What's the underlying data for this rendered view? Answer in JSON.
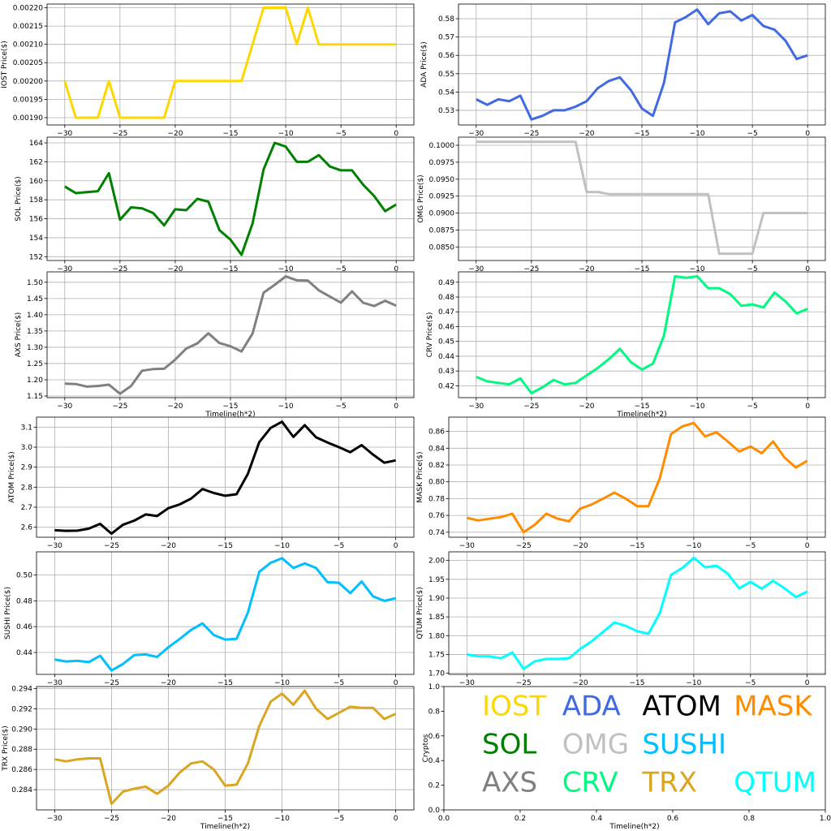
{
  "chart_data": [
    {
      "type": "line",
      "x": [
        -30,
        -29,
        -28,
        -27,
        -26,
        -25,
        -24,
        -23,
        -22,
        -21,
        -20,
        -19,
        -18,
        -17,
        -16,
        -15,
        -14,
        -13,
        -12,
        -11,
        -10,
        -9,
        -8,
        -7,
        -6,
        -5,
        -4,
        -3,
        -2,
        -1,
        0
      ],
      "series": [
        {
          "name": "IOST",
          "values": [
            0.002,
            0.0019,
            0.0019,
            0.0019,
            0.002,
            0.0019,
            0.0019,
            0.0019,
            0.0019,
            0.0019,
            0.002,
            0.002,
            0.002,
            0.002,
            0.002,
            0.002,
            0.002,
            0.0021,
            0.0022,
            0.0022,
            0.0022,
            0.0021,
            0.0022,
            0.0021,
            0.0021,
            0.0021,
            0.0021,
            0.0021,
            0.0021,
            0.0021,
            0.0021
          ]
        }
      ],
      "ylabel": "IOST Price($)",
      "xlabel": "",
      "ylim": [
        0.00188,
        0.00221
      ],
      "yticks": [
        "0.00190",
        "0.00195",
        "0.00200",
        "0.00205",
        "0.00210",
        "0.00215",
        "0.00220"
      ],
      "xticks": [
        "−30",
        "−25",
        "−20",
        "−15",
        "−10",
        "−5",
        "0"
      ],
      "color": "#FFD700",
      "grid": true
    },
    {
      "type": "line",
      "x": [
        -30,
        -29,
        -28,
        -27,
        -26,
        -25,
        -24,
        -23,
        -22,
        -21,
        -20,
        -19,
        -18,
        -17,
        -16,
        -15,
        -14,
        -13,
        -12,
        -11,
        -10,
        -9,
        -8,
        -7,
        -6,
        -5,
        -4,
        -3,
        -2,
        -1,
        0
      ],
      "series": [
        {
          "name": "ADA",
          "values": [
            0.536,
            0.533,
            0.536,
            0.535,
            0.538,
            0.525,
            0.527,
            0.53,
            0.53,
            0.532,
            0.535,
            0.542,
            0.546,
            0.548,
            0.541,
            0.531,
            0.527,
            0.545,
            0.578,
            0.581,
            0.585,
            0.577,
            0.583,
            0.584,
            0.579,
            0.582,
            0.576,
            0.574,
            0.568,
            0.558,
            0.56
          ]
        }
      ],
      "ylabel": "ADA  Price($)",
      "xlabel": "",
      "ylim": [
        0.522,
        0.588
      ],
      "yticks": [
        "0.53",
        "0.54",
        "0.55",
        "0.56",
        "0.57",
        "0.58"
      ],
      "xticks": [
        "−30",
        "−25",
        "−20",
        "−15",
        "−10",
        "−5",
        "0"
      ],
      "color": "#4169E1",
      "grid": true
    },
    {
      "type": "line",
      "x": [
        -30,
        -29,
        -28,
        -27,
        -26,
        -25,
        -24,
        -23,
        -22,
        -21,
        -20,
        -19,
        -18,
        -17,
        -16,
        -15,
        -14,
        -13,
        -12,
        -11,
        -10,
        -9,
        -8,
        -7,
        -6,
        -5,
        -4,
        -3,
        -2,
        -1,
        0
      ],
      "series": [
        {
          "name": "SOL",
          "values": [
            159.4,
            158.7,
            158.8,
            158.9,
            160.8,
            155.9,
            157.2,
            157.1,
            156.6,
            155.3,
            157.0,
            156.9,
            158.1,
            157.8,
            154.8,
            153.8,
            152.2,
            155.5,
            161.2,
            164.0,
            163.6,
            162.0,
            162.0,
            162.7,
            161.5,
            161.1,
            161.1,
            159.6,
            158.4,
            156.8,
            157.5
          ]
        }
      ],
      "ylabel": "SOL Price($)",
      "xlabel": "",
      "ylim": [
        151.6,
        164.6
      ],
      "yticks": [
        "152",
        "154",
        "156",
        "158",
        "160",
        "162",
        "164"
      ],
      "xticks": [
        "−30",
        "−25",
        "−20",
        "−15",
        "−10",
        "−5",
        "0"
      ],
      "color": "#008000",
      "grid": true
    },
    {
      "type": "line",
      "x": [
        -30,
        -29,
        -28,
        -27,
        -26,
        -25,
        -24,
        -23,
        -22,
        -21,
        -20,
        -19,
        -18,
        -17,
        -16,
        -15,
        -14,
        -13,
        -12,
        -11,
        -10,
        -9,
        -8,
        -7,
        -6,
        -5,
        -4,
        -3,
        -2,
        -1,
        0
      ],
      "series": [
        {
          "name": "OMG",
          "values": [
            0.1005,
            0.1005,
            0.1005,
            0.1005,
            0.1005,
            0.1005,
            0.1005,
            0.1005,
            0.1005,
            0.1005,
            0.0931,
            0.0931,
            0.0928,
            0.0928,
            0.0928,
            0.0928,
            0.0928,
            0.0928,
            0.0928,
            0.0928,
            0.0928,
            0.0928,
            0.084,
            0.084,
            0.084,
            0.084,
            0.09,
            0.09,
            0.09,
            0.09,
            0.09
          ]
        }
      ],
      "ylabel": "OMG  Price($)",
      "xlabel": "",
      "ylim": [
        0.083,
        0.1012
      ],
      "yticks": [
        "0.0850",
        "0.0875",
        "0.0900",
        "0.0925",
        "0.0950",
        "0.0975",
        "0.1000"
      ],
      "xticks": [
        "−30",
        "−25",
        "−20",
        "−15",
        "−10",
        "−5",
        "0"
      ],
      "color": "#C0C0C0",
      "grid": true
    },
    {
      "type": "line",
      "x": [
        -30,
        -29,
        -28,
        -27,
        -26,
        -25,
        -24,
        -23,
        -22,
        -21,
        -20,
        -19,
        -18,
        -17,
        -16,
        -15,
        -14,
        -13,
        -12,
        -11,
        -10,
        -9,
        -8,
        -7,
        -6,
        -5,
        -4,
        -3,
        -2,
        -1,
        0
      ],
      "series": [
        {
          "name": "AXS",
          "values": [
            1.188,
            1.187,
            1.179,
            1.181,
            1.185,
            1.157,
            1.181,
            1.228,
            1.233,
            1.234,
            1.262,
            1.296,
            1.312,
            1.343,
            1.313,
            1.303,
            1.287,
            1.342,
            1.468,
            1.492,
            1.518,
            1.506,
            1.505,
            1.475,
            1.456,
            1.437,
            1.472,
            1.437,
            1.427,
            1.443,
            1.428
          ]
        }
      ],
      "ylabel": "AXS Price($)",
      "xlabel": "Timeline(h*2)",
      "ylim": [
        1.145,
        1.532
      ],
      "yticks": [
        "1.15",
        "1.20",
        "1.25",
        "1.30",
        "1.35",
        "1.40",
        "1.45",
        "1.50"
      ],
      "xticks": [
        "−30",
        "−25",
        "−20",
        "−15",
        "−10",
        "−5",
        "0"
      ],
      "color": "#808080",
      "grid": true
    },
    {
      "type": "line",
      "x": [
        -30,
        -29,
        -28,
        -27,
        -26,
        -25,
        -24,
        -23,
        -22,
        -21,
        -20,
        -19,
        -18,
        -17,
        -16,
        -15,
        -14,
        -13,
        -12,
        -11,
        -10,
        -9,
        -8,
        -7,
        -6,
        -5,
        -4,
        -3,
        -2,
        -1,
        0
      ],
      "series": [
        {
          "name": "CRV",
          "values": [
            0.426,
            0.423,
            0.422,
            0.421,
            0.425,
            0.415,
            0.419,
            0.424,
            0.421,
            0.422,
            0.427,
            0.432,
            0.438,
            0.445,
            0.436,
            0.431,
            0.435,
            0.454,
            0.494,
            0.493,
            0.494,
            0.486,
            0.486,
            0.482,
            0.474,
            0.475,
            0.473,
            0.483,
            0.477,
            0.469,
            0.472
          ]
        }
      ],
      "ylabel": "CRV  Price($)",
      "xlabel": "Timeline(h*2)",
      "ylim": [
        0.412,
        0.497
      ],
      "yticks": [
        "0.42",
        "0.43",
        "0.44",
        "0.45",
        "0.46",
        "0.47",
        "0.48",
        "0.49"
      ],
      "xticks": [
        "−30",
        "−25",
        "−20",
        "−15",
        "−10",
        "−5",
        "0"
      ],
      "color": "#00FA7F",
      "grid": true
    },
    {
      "type": "line",
      "x": [
        -30,
        -29,
        -28,
        -27,
        -26,
        -25,
        -24,
        -23,
        -22,
        -21,
        -20,
        -19,
        -18,
        -17,
        -16,
        -15,
        -14,
        -13,
        -12,
        -11,
        -10,
        -9,
        -8,
        -7,
        -6,
        -5,
        -4,
        -3,
        -2,
        -1,
        0
      ],
      "series": [
        {
          "name": "ATOM",
          "values": [
            2.585,
            2.582,
            2.583,
            2.593,
            2.617,
            2.568,
            2.612,
            2.633,
            2.664,
            2.656,
            2.695,
            2.714,
            2.743,
            2.791,
            2.771,
            2.757,
            2.765,
            2.867,
            3.025,
            3.096,
            3.127,
            3.051,
            3.11,
            3.049,
            3.023,
            3.0,
            2.975,
            3.01,
            2.963,
            2.922,
            2.934
          ]
        }
      ],
      "ylabel": "ATOM  Price($)",
      "xlabel": "",
      "ylim": [
        2.55,
        3.15
      ],
      "yticks": [
        "2.6",
        "2.7",
        "2.8",
        "2.9",
        "3.0",
        "3.1"
      ],
      "xticks": [
        "−30",
        "−25",
        "−20",
        "−15",
        "−10",
        "−5",
        "0"
      ],
      "color": "#000000",
      "grid": true
    },
    {
      "type": "line",
      "x": [
        -30,
        -29,
        -28,
        -27,
        -26,
        -25,
        -24,
        -23,
        -22,
        -21,
        -20,
        -19,
        -18,
        -17,
        -16,
        -15,
        -14,
        -13,
        -12,
        -11,
        -10,
        -9,
        -8,
        -7,
        -6,
        -5,
        -4,
        -3,
        -2,
        -1,
        0
      ],
      "series": [
        {
          "name": "MASK",
          "values": [
            0.757,
            0.754,
            0.756,
            0.758,
            0.762,
            0.74,
            0.749,
            0.762,
            0.756,
            0.753,
            0.768,
            0.773,
            0.78,
            0.787,
            0.78,
            0.771,
            0.771,
            0.804,
            0.857,
            0.866,
            0.87,
            0.854,
            0.859,
            0.848,
            0.836,
            0.842,
            0.834,
            0.848,
            0.829,
            0.817,
            0.825
          ]
        }
      ],
      "ylabel": "MASK  Price($)",
      "xlabel": "",
      "ylim": [
        0.734,
        0.877
      ],
      "yticks": [
        "0.74",
        "0.76",
        "0.78",
        "0.80",
        "0.82",
        "0.84",
        "0.86"
      ],
      "xticks": [
        "−30",
        "−25",
        "−20",
        "−15",
        "−10",
        "−5",
        "0"
      ],
      "color": "#FF8C00",
      "grid": true
    },
    {
      "type": "line",
      "x": [
        -30,
        -29,
        -28,
        -27,
        -26,
        -25,
        -24,
        -23,
        -22,
        -21,
        -20,
        -19,
        -18,
        -17,
        -16,
        -15,
        -14,
        -13,
        -12,
        -11,
        -10,
        -9,
        -8,
        -7,
        -6,
        -5,
        -4,
        -3,
        -2,
        -1,
        0
      ],
      "series": [
        {
          "name": "SUSHI",
          "values": [
            0.4345,
            0.433,
            0.4335,
            0.4325,
            0.4375,
            0.426,
            0.431,
            0.438,
            0.4385,
            0.4365,
            0.444,
            0.4505,
            0.4575,
            0.4625,
            0.4535,
            0.45,
            0.4505,
            0.471,
            0.5025,
            0.5095,
            0.513,
            0.5055,
            0.509,
            0.5055,
            0.4945,
            0.494,
            0.486,
            0.495,
            0.4835,
            0.48,
            0.482
          ]
        }
      ],
      "ylabel": "SUSHI  Price($)",
      "xlabel": "",
      "ylim": [
        0.423,
        0.518
      ],
      "yticks": [
        "0.44",
        "0.46",
        "0.48",
        "0.50"
      ],
      "xticks": [
        "−30",
        "−25",
        "−20",
        "−15",
        "−10",
        "−5",
        "0"
      ],
      "color": "#00BFFF",
      "grid": true
    },
    {
      "type": "line",
      "x": [
        -30,
        -29,
        -28,
        -27,
        -26,
        -25,
        -24,
        -23,
        -22,
        -21,
        -20,
        -19,
        -18,
        -17,
        -16,
        -15,
        -14,
        -13,
        -12,
        -11,
        -10,
        -9,
        -8,
        -7,
        -6,
        -5,
        -4,
        -3,
        -2,
        -1,
        0
      ],
      "series": [
        {
          "name": "QTUM",
          "values": [
            1.75,
            1.745,
            1.745,
            1.74,
            1.755,
            1.712,
            1.732,
            1.738,
            1.738,
            1.74,
            1.765,
            1.785,
            1.81,
            1.835,
            1.826,
            1.812,
            1.805,
            1.86,
            1.962,
            1.98,
            2.007,
            1.982,
            1.986,
            1.965,
            1.926,
            1.943,
            1.925,
            1.946,
            1.926,
            1.903,
            1.917
          ]
        }
      ],
      "ylabel": "QTUM Price($)",
      "xlabel": "",
      "ylim": [
        1.697,
        2.023
      ],
      "yticks": [
        "1.70",
        "1.75",
        "1.80",
        "1.85",
        "1.90",
        "1.95",
        "2.00"
      ],
      "xticks": [
        "−30",
        "−25",
        "−20",
        "−15",
        "−10",
        "−5",
        "0"
      ],
      "color": "#00FFFF",
      "grid": true
    },
    {
      "type": "line",
      "x": [
        -30,
        -29,
        -28,
        -27,
        -26,
        -25,
        -24,
        -23,
        -22,
        -21,
        -20,
        -19,
        -18,
        -17,
        -16,
        -15,
        -14,
        -13,
        -12,
        -11,
        -10,
        -9,
        -8,
        -7,
        -6,
        -5,
        -4,
        -3,
        -2,
        -1,
        0
      ],
      "series": [
        {
          "name": "TRX",
          "values": [
            0.287,
            0.2868,
            0.287,
            0.2871,
            0.2871,
            0.2826,
            0.2838,
            0.2841,
            0.2843,
            0.2836,
            0.2844,
            0.2857,
            0.2866,
            0.2868,
            0.286,
            0.2844,
            0.2845,
            0.2866,
            0.2903,
            0.2927,
            0.2935,
            0.2924,
            0.2938,
            0.292,
            0.291,
            0.2916,
            0.2922,
            0.2921,
            0.2921,
            0.291,
            0.2915
          ]
        }
      ],
      "ylabel": "TRX Price($)",
      "xlabel": "Timeline(h*2)",
      "ylim": [
        0.282,
        0.2942
      ],
      "yticks": [
        "0.284",
        "0.286",
        "0.288",
        "0.290",
        "0.292",
        "0.294"
      ],
      "xticks": [
        "−30",
        "−25",
        "−20",
        "−15",
        "−10",
        "−5",
        "0"
      ],
      "color": "#DAA520",
      "grid": true
    },
    {
      "type": "text-legend",
      "ylabel": "Cryptos",
      "xlabel": "Timeline(h*2)",
      "xlim": [
        0,
        1
      ],
      "ylim": [
        0,
        1
      ],
      "xticks": [
        "0.0",
        "0.2",
        "0.4",
        "0.6",
        "0.8",
        "1.0"
      ],
      "yticks": [
        "0.0",
        "0.2",
        "0.4",
        "0.6",
        "0.8",
        "1.0"
      ],
      "grid": false,
      "labels": [
        {
          "text": "IOST",
          "color": "#FFD700",
          "x": 0.1,
          "y": 0.83
        },
        {
          "text": "ADA",
          "color": "#4169E1",
          "x": 0.31,
          "y": 0.83
        },
        {
          "text": "ATOM",
          "color": "#000000",
          "x": 0.52,
          "y": 0.83
        },
        {
          "text": "MASK",
          "color": "#FF8C00",
          "x": 0.76,
          "y": 0.83
        },
        {
          "text": "SOL",
          "color": "#008000",
          "x": 0.1,
          "y": 0.52
        },
        {
          "text": "OMG",
          "color": "#C0C0C0",
          "x": 0.31,
          "y": 0.52
        },
        {
          "text": "SUSHI",
          "color": "#00BFFF",
          "x": 0.52,
          "y": 0.52
        },
        {
          "text": "AXS",
          "color": "#808080",
          "x": 0.1,
          "y": 0.21
        },
        {
          "text": "CRV",
          "color": "#00FA7F",
          "x": 0.31,
          "y": 0.21
        },
        {
          "text": "TRX",
          "color": "#DAA520",
          "x": 0.52,
          "y": 0.21
        },
        {
          "text": "QTUM",
          "color": "#00FFFF",
          "x": 0.76,
          "y": 0.21
        }
      ]
    }
  ]
}
